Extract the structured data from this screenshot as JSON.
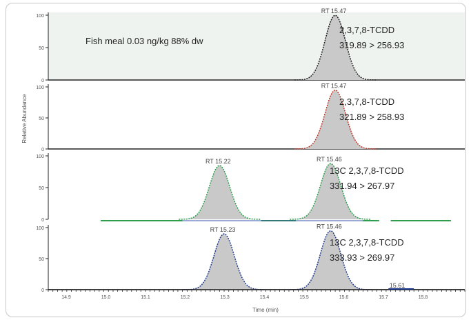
{
  "chart_data": {
    "type": "line",
    "xlabel": "Time (min)",
    "ylabel": "Relative Abundance",
    "xlim": [
      14.85,
      15.75
    ],
    "x_ticks": [
      "14.9",
      "15.0",
      "15.1",
      "15.2",
      "15.3",
      "15.4",
      "15.5",
      "15.6",
      "15.7",
      "15.8"
    ],
    "extra_label": "15.61",
    "colors": {
      "panel1_bg": "#eef3f0",
      "peak_fill": "#c9c9c9",
      "panel1_line": "#1a1a1a",
      "panel2_line": "#c0392b",
      "panel3_line": "#2e9e4e",
      "panel3_baseline": "#2e9e4e",
      "panel4_line": "#1f3b8f"
    },
    "panels": [
      {
        "note": "Fish meal 0.03 ng/kg 88% dw",
        "compound": "2,3,7,8-TCDD",
        "transition": "319.89 > 256.93",
        "y_ticks": [
          "100",
          "50",
          "0"
        ],
        "peaks": [
          {
            "label": "RT 15.47",
            "rt": 15.47,
            "height": 100
          }
        ]
      },
      {
        "compound": "2,3,7,8-TCDD",
        "transition": "321.89 > 258.93",
        "y_ticks": [
          "100",
          "50",
          "0"
        ],
        "peaks": [
          {
            "label": "RT 15.47",
            "rt": 15.47,
            "height": 95
          }
        ]
      },
      {
        "compound": "13C 2,3,7,8-TCDD",
        "transition": "331.94 > 267.97",
        "y_ticks": [
          "100",
          "50",
          "0"
        ],
        "peaks": [
          {
            "label": "RT 15.22",
            "rt": 15.22,
            "height": 85
          },
          {
            "label": "RT 15.46",
            "rt": 15.46,
            "height": 88
          }
        ]
      },
      {
        "compound": "13C 2,3,7,8-TCDD",
        "transition": "333.93 > 269.97",
        "y_ticks": [
          "100",
          "50",
          "0"
        ],
        "peaks": [
          {
            "label": "RT 15.23",
            "rt": 15.23,
            "height": 90
          },
          {
            "label": "RT 15.46",
            "rt": 15.46,
            "height": 95
          }
        ]
      }
    ]
  }
}
